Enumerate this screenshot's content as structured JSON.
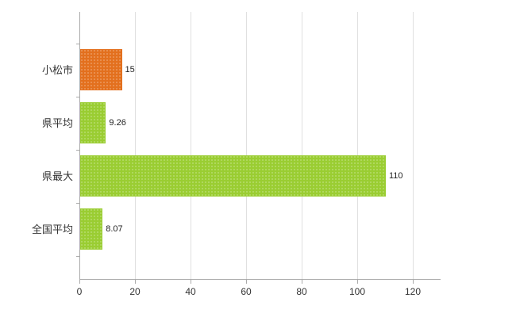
{
  "chart_data": {
    "type": "bar",
    "orientation": "horizontal",
    "title": "",
    "xlabel": "",
    "ylabel": "",
    "categories": [
      "小松市",
      "県平均",
      "県最大",
      "全国平均"
    ],
    "values": [
      15,
      9.26,
      110,
      8.07
    ],
    "value_labels": [
      "15",
      "9.26",
      "110",
      "8.07"
    ],
    "bar_colors": [
      "#E3701E",
      "#9ACD32",
      "#9ACD32",
      "#9ACD32"
    ],
    "xlim": [
      0,
      130
    ],
    "xticks": [
      0,
      20,
      40,
      60,
      80,
      100,
      120
    ],
    "xtick_labels": [
      "0",
      "20",
      "40",
      "60",
      "80",
      "100",
      "120"
    ],
    "grid": true,
    "legend_position": "none",
    "background_color": "#FFFFFF",
    "axis_color": "#AAAAAA",
    "gridline_color": "#E0E0E0",
    "label_color": "#333333"
  }
}
